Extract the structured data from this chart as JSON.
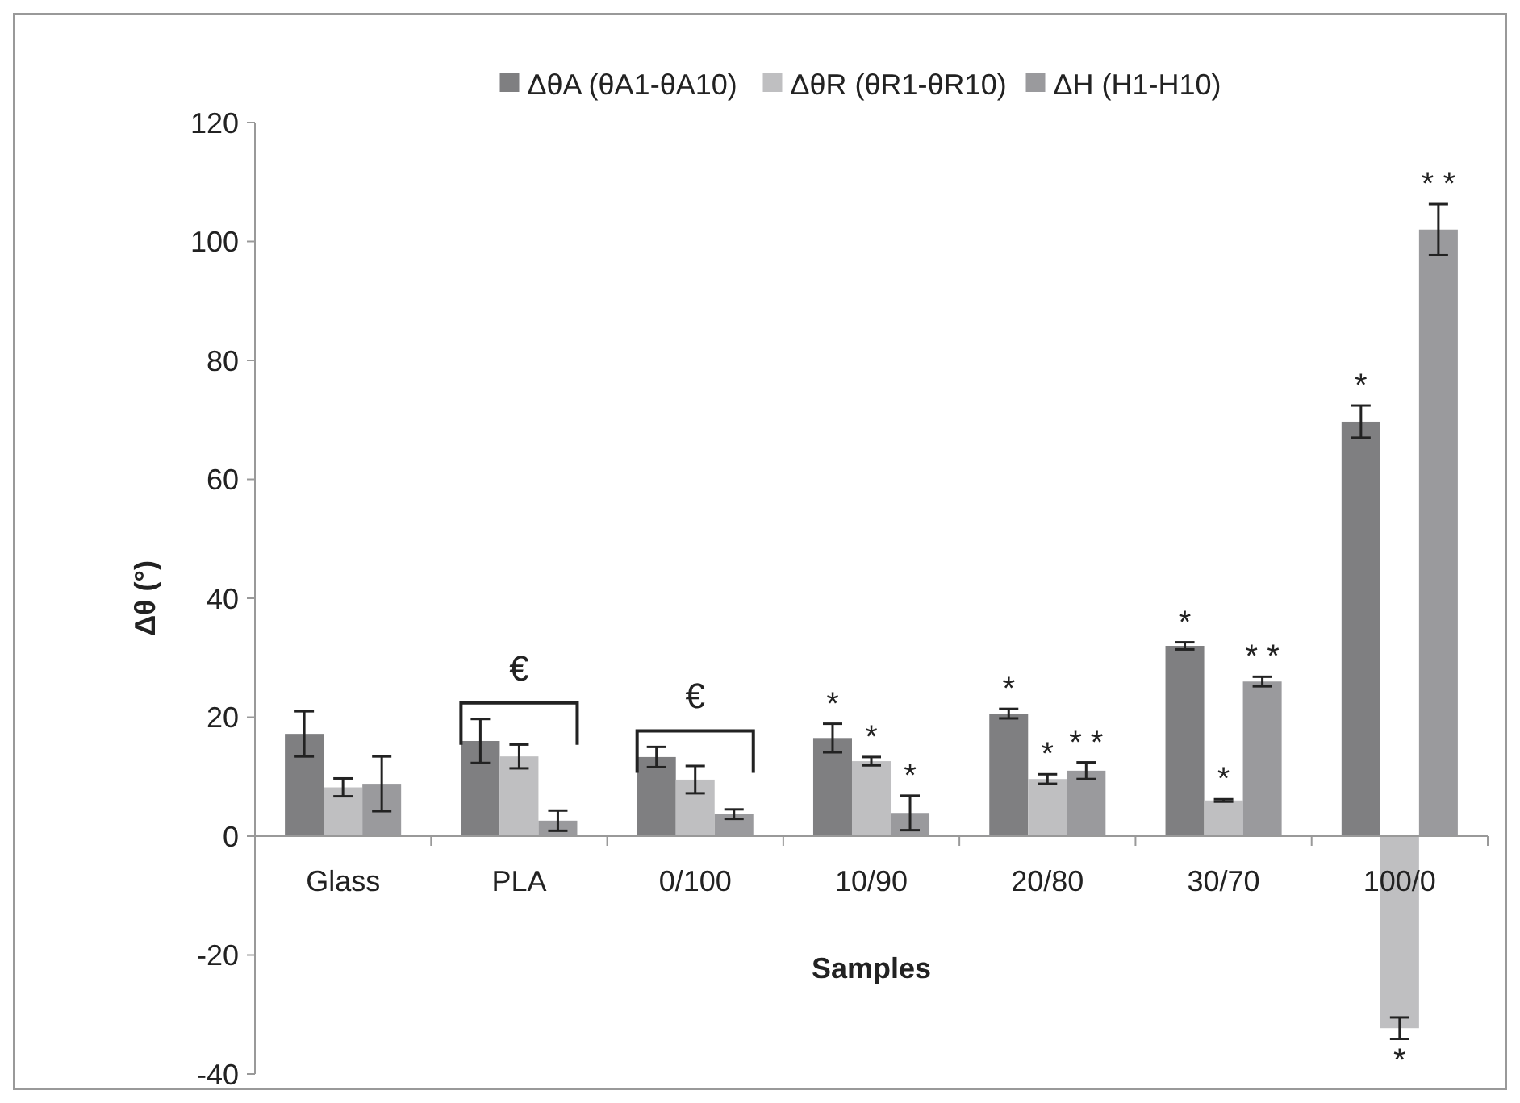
{
  "chart_data": {
    "type": "bar",
    "xlabel": "Samples",
    "ylabel": "Δθ (°)",
    "categories": [
      "Glass",
      "PLA",
      "0/100",
      "10/90",
      "20/80",
      "30/70",
      "100/0"
    ],
    "series": [
      {
        "name": "ΔθA (θA1-θA10)",
        "color": "#7f7f81",
        "values": [
          17.2,
          16,
          13.3,
          16.5,
          20.6,
          32,
          69.7
        ],
        "errors": [
          3.8,
          3.7,
          1.7,
          2.4,
          0.8,
          0.6,
          2.7
        ],
        "value_labels": [
          null,
          null,
          null,
          "*",
          "*",
          "*",
          "*"
        ]
      },
      {
        "name": "ΔθR (θR1-θR10)",
        "color": "#bfbfc1",
        "values": [
          8.2,
          13.4,
          9.5,
          12.6,
          9.6,
          6,
          -32.3
        ],
        "errors": [
          1.5,
          2,
          2.3,
          0.7,
          0.8,
          0.2,
          1.8
        ],
        "value_labels": [
          null,
          null,
          null,
          "*",
          "*",
          "*",
          "*"
        ]
      },
      {
        "name": "ΔH (H1-H10)",
        "color": "#9a9a9d",
        "values": [
          8.8,
          2.6,
          3.7,
          3.9,
          11,
          26,
          102
        ],
        "errors": [
          4.6,
          1.7,
          0.8,
          2.9,
          1.4,
          0.8,
          4.3
        ],
        "value_labels": [
          null,
          null,
          null,
          "*",
          "* *",
          "* *",
          "* *"
        ]
      }
    ],
    "ylim": [
      -40,
      120
    ],
    "yticks": [
      -40,
      -20,
      0,
      20,
      40,
      60,
      80,
      100,
      120
    ],
    "grid": false,
    "legend": "top",
    "annotations": [
      "€",
      "€"
    ]
  }
}
